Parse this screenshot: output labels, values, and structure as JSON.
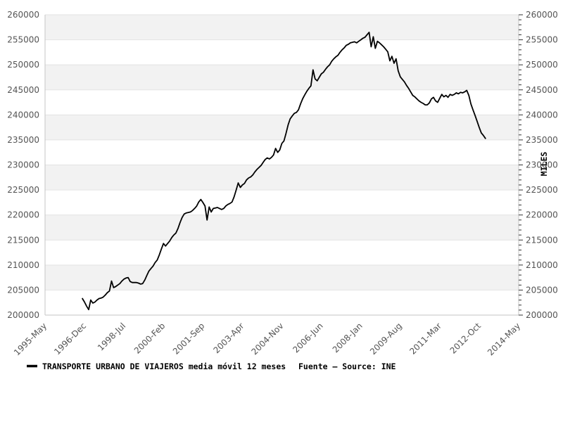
{
  "chart_data": {
    "type": "line",
    "title": "",
    "ylabel_right": "MILES",
    "legend": {
      "swatch": "line-dash",
      "label": "TRANSPORTE URBANO DE VIAJEROS media móvil 12 meses",
      "source": "Fuente – Source: INE"
    },
    "ylim": [
      200000,
      260000
    ],
    "y_tick_step": 5000,
    "y_minor_step": 1000,
    "y_tick_labels": [
      "200000",
      "205000",
      "210000",
      "215000",
      "220000",
      "225000",
      "230000",
      "235000",
      "240000",
      "245000",
      "250000",
      "255000",
      "260000"
    ],
    "x_tick_labels": [
      "1995-May",
      "1996-Dec",
      "1998-Jul",
      "2000-Feb",
      "2001-Sep",
      "2003-Apr",
      "2004-Nov",
      "2006-Jun",
      "2008-Jan",
      "2009-Aug",
      "2011-Mar",
      "2012-Oct",
      "2014-May"
    ],
    "x_tick_interval_months": 19,
    "x_range_months": [
      0,
      228
    ],
    "grid": "horizontal-bands",
    "legend_position": "bottom-left",
    "colors": {
      "line": "#000000",
      "band": "#f2f2f2",
      "band_edge": "#e3e3e3",
      "axis": "#c6c6c6",
      "tick_text": "#545454",
      "legend_text": "#000000"
    },
    "series": [
      {
        "name": "TRANSPORTE URBANO DE VIAJEROS media móvil 12 meses",
        "start_month": "1996-Nov",
        "start_month_offset": 18,
        "values": [
          203300,
          202600,
          201800,
          201100,
          203000,
          202400,
          202600,
          203000,
          203300,
          203400,
          203600,
          204000,
          204500,
          204800,
          206800,
          205500,
          205700,
          206000,
          206300,
          206800,
          207200,
          207400,
          207500,
          206700,
          206500,
          206500,
          206500,
          206400,
          206200,
          206300,
          207000,
          207900,
          208800,
          209300,
          209800,
          210500,
          211000,
          212000,
          213200,
          214300,
          213800,
          214300,
          214800,
          215500,
          216000,
          216400,
          217300,
          218500,
          219500,
          220200,
          220400,
          220500,
          220600,
          220900,
          221300,
          221800,
          222600,
          223100,
          222500,
          221800,
          219000,
          221600,
          220600,
          221300,
          221400,
          221500,
          221300,
          221100,
          221300,
          221800,
          222100,
          222300,
          222600,
          223600,
          225000,
          226400,
          225500,
          226000,
          226300,
          227000,
          227400,
          227600,
          228000,
          228600,
          229100,
          229500,
          229900,
          230500,
          231100,
          231400,
          231200,
          231500,
          232000,
          233300,
          232500,
          233000,
          234300,
          234800,
          236300,
          238000,
          239200,
          239800,
          240300,
          240500,
          241000,
          242200,
          243200,
          244000,
          244700,
          245300,
          245800,
          249000,
          247200,
          246800,
          247500,
          248200,
          248500,
          249100,
          249600,
          250000,
          250700,
          251200,
          251600,
          251900,
          252500,
          253000,
          253400,
          253900,
          254100,
          254400,
          254500,
          254600,
          254400,
          254700,
          255000,
          255300,
          255500,
          256000,
          256500,
          253600,
          255600,
          253300,
          254700,
          254400,
          254000,
          253600,
          253100,
          252600,
          250800,
          251700,
          250300,
          251200,
          248800,
          247600,
          247100,
          246600,
          245900,
          245300,
          244600,
          243900,
          243600,
          243200,
          242800,
          242500,
          242300,
          242000,
          242000,
          242400,
          243200,
          243500,
          242800,
          242500,
          243300,
          244100,
          243600,
          243900,
          243500,
          244100,
          243900,
          244100,
          244400,
          244200,
          244500,
          244400,
          244600,
          244900,
          243900,
          242200,
          241000,
          239900,
          238700,
          237500,
          236400,
          235900,
          235300
        ]
      }
    ]
  }
}
